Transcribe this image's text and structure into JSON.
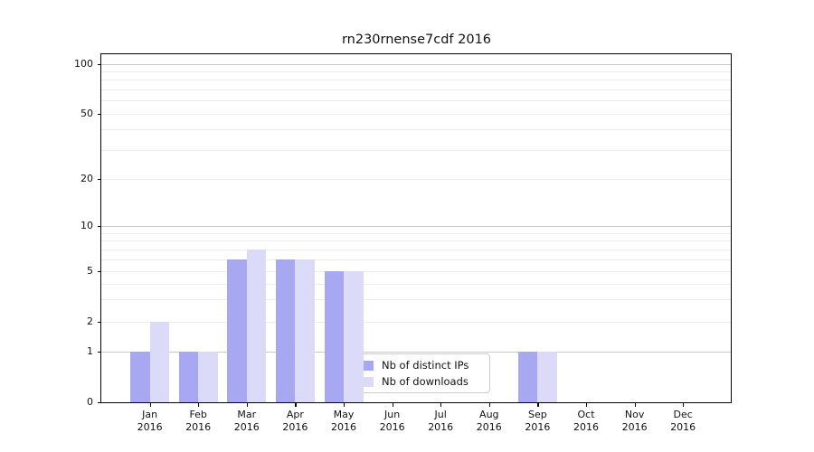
{
  "title": "rn230rnense7cdf 2016",
  "y_axis": {
    "tick_labels": [
      "100",
      "50",
      "20",
      "10",
      "5",
      "2",
      "1",
      "0"
    ],
    "tick_values": [
      100,
      50,
      20,
      10,
      5,
      2,
      1,
      0
    ],
    "grid_major_values": [
      1,
      10,
      100
    ],
    "grid_minor_values": [
      2,
      3,
      4,
      5,
      6,
      7,
      8,
      9,
      20,
      30,
      40,
      50,
      60,
      70,
      80,
      90
    ]
  },
  "x_axis": {
    "months": [
      "Jan",
      "Feb",
      "Mar",
      "Apr",
      "May",
      "Jun",
      "Jul",
      "Aug",
      "Sep",
      "Oct",
      "Nov",
      "Dec"
    ],
    "year": "2016"
  },
  "legend": {
    "items": [
      {
        "label": "Nb of distinct IPs",
        "series": "ips"
      },
      {
        "label": "Nb of downloads",
        "series": "downloads"
      }
    ]
  },
  "colors": {
    "ips_bar": "#a8a8f2",
    "downloads_bar": "#dbdbf9",
    "grid_major": "#c8c8c8",
    "grid_minor": "#ececec",
    "axis": "#000000",
    "legend_border": "#cccccc"
  },
  "chart_data": {
    "type": "bar",
    "title": "rn230rnense7cdf 2016",
    "categories": [
      "Jan 2016",
      "Feb 2016",
      "Mar 2016",
      "Apr 2016",
      "May 2016",
      "Jun 2016",
      "Jul 2016",
      "Aug 2016",
      "Sep 2016",
      "Oct 2016",
      "Nov 2016",
      "Dec 2016"
    ],
    "series": [
      {
        "name": "Nb of distinct IPs",
        "color": "#a8a8f2",
        "values": [
          1,
          1,
          6,
          6,
          5,
          0,
          0,
          0,
          1,
          0,
          0,
          0
        ]
      },
      {
        "name": "Nb of downloads",
        "color": "#dbdbf9",
        "values": [
          2,
          1,
          7,
          6,
          5,
          0,
          0,
          0,
          1,
          0,
          0,
          0
        ]
      }
    ],
    "yscale": "symlog",
    "ylim": [
      0,
      115
    ],
    "yticks": [
      0,
      1,
      2,
      5,
      10,
      20,
      50,
      100
    ],
    "grid": true,
    "legend_position": "inside-lower-center-right"
  }
}
